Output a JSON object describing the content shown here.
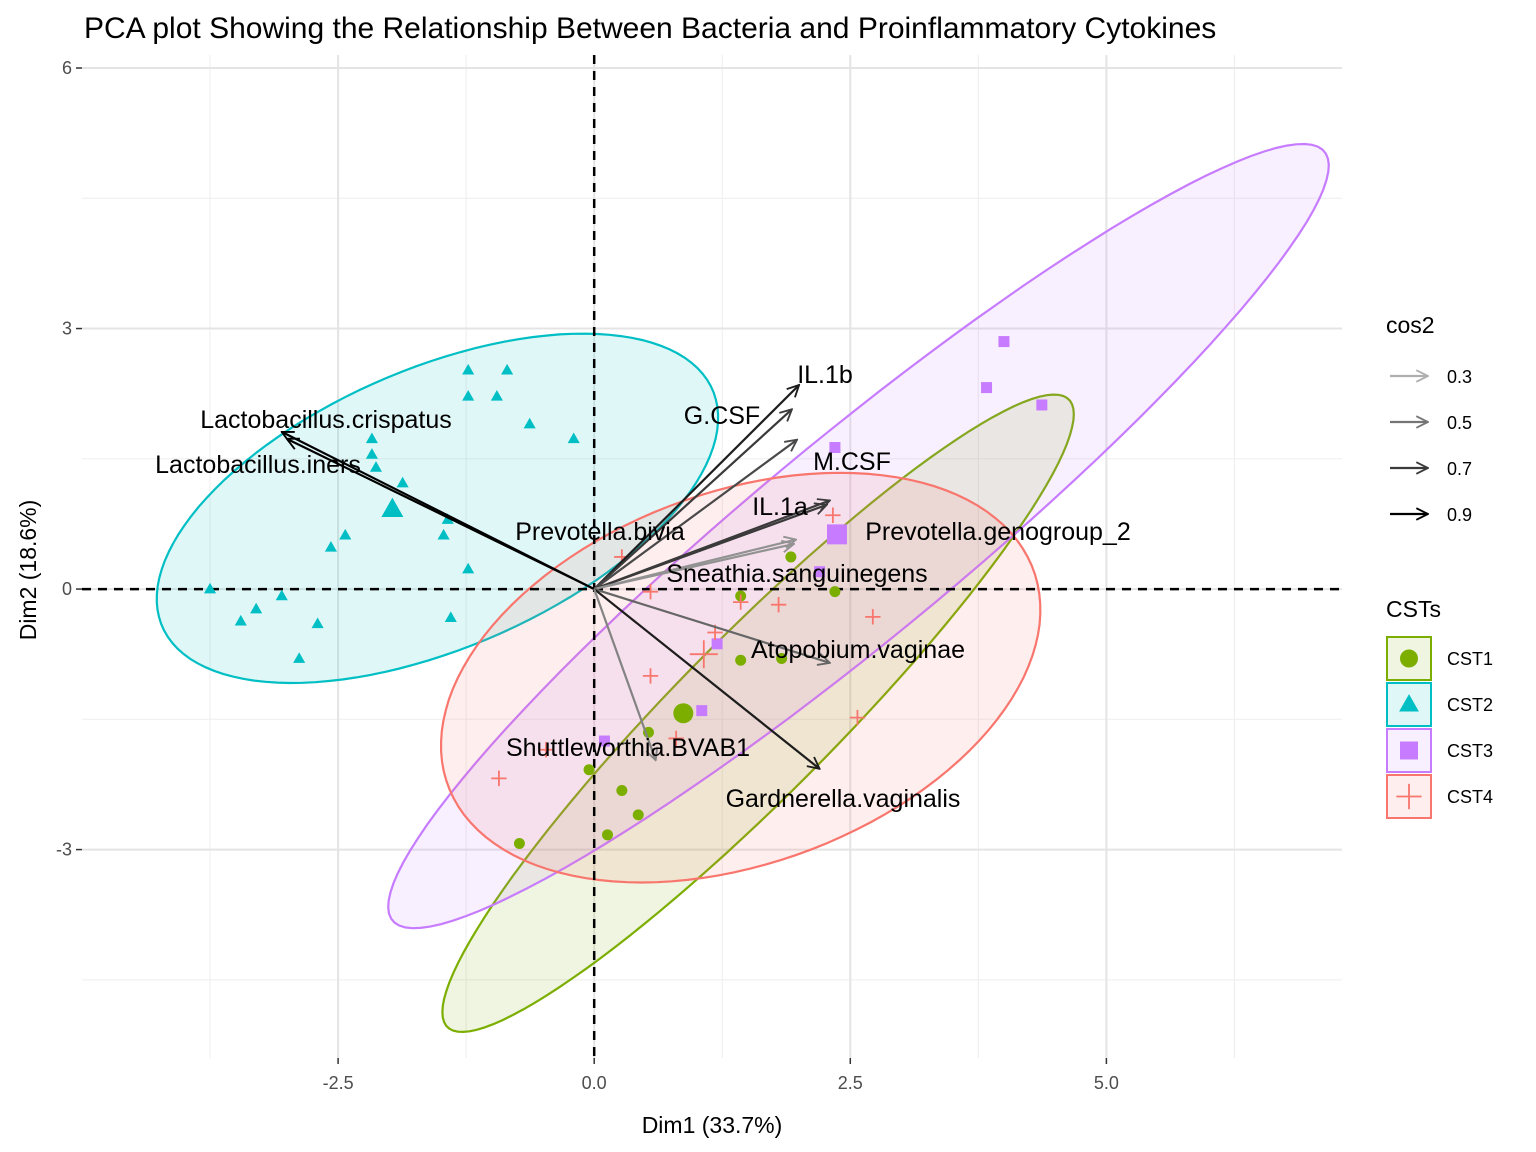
{
  "chart_data": {
    "type": "scatter",
    "title": "PCA plot Showing the Relationship Between Bacteria and Proinflammatory Cytokines",
    "xlabel": "Dim1 (33.7%)",
    "ylabel": "Dim2 (18.6%)",
    "xlim": [
      -5.0,
      7.3
    ],
    "ylim": [
      -5.4,
      6.15
    ],
    "x_ticks": [
      -2.5,
      0.0,
      2.5,
      5.0
    ],
    "x_tick_labels": [
      "-2.5",
      "0.0",
      "2.5",
      "5.0"
    ],
    "y_ticks": [
      -3,
      0,
      3,
      6
    ],
    "y_tick_labels": [
      "-3",
      "0",
      "3",
      "6"
    ],
    "grid": true,
    "legend_placement": "right",
    "variables": [
      {
        "label": "Lactobacillus.crispatus",
        "x": -3.05,
        "y": 1.81,
        "cos2": 0.9
      },
      {
        "label": "Lactobacillus.iners",
        "x": -3.0,
        "y": 1.73,
        "cos2": 0.9
      },
      {
        "label": "IL.1b",
        "x": 2.0,
        "y": 2.35,
        "cos2": 0.8
      },
      {
        "label": "G.CSF",
        "x": 1.93,
        "y": 2.07,
        "cos2": 0.7
      },
      {
        "label": "M.CSF",
        "x": 1.98,
        "y": 1.72,
        "cos2": 0.65
      },
      {
        "label": "IL.1a",
        "x": 2.3,
        "y": 1.02,
        "cos2": 0.7
      },
      {
        "label": "Prevotella.genogroup_2",
        "x": 2.27,
        "y": 0.97,
        "cos2": 0.7
      },
      {
        "label": "Prevotella.bivia",
        "x": 1.97,
        "y": 0.57,
        "cos2": 0.4
      },
      {
        "label": "Sneathia.sanguinegens",
        "x": 1.95,
        "y": 0.52,
        "cos2": 0.4
      },
      {
        "label": "Atopobium.vaginae",
        "x": 2.3,
        "y": -0.85,
        "cos2": 0.55
      },
      {
        "label": "Gardnerella.vaginalis",
        "x": 2.2,
        "y": -2.07,
        "cos2": 0.8
      },
      {
        "label": "Shuttleworthia.BVAB1",
        "x": 0.6,
        "y": -1.97,
        "cos2": 0.45
      }
    ],
    "groups": [
      {
        "name": "CST1",
        "color": "#7CAE00",
        "shape": "circle",
        "centroid": [
          0.87,
          -1.43
        ],
        "points": [
          [
            1.92,
            0.37
          ],
          [
            1.43,
            -0.08
          ],
          [
            2.35,
            -0.03
          ],
          [
            1.43,
            -0.82
          ],
          [
            1.83,
            -0.8
          ],
          [
            0.53,
            -1.65
          ],
          [
            -0.05,
            -2.08
          ],
          [
            0.27,
            -2.32
          ],
          [
            0.43,
            -2.6
          ],
          [
            0.13,
            -2.83
          ],
          [
            -0.73,
            -2.93
          ]
        ]
      },
      {
        "name": "CST2",
        "color": "#00BFC4",
        "shape": "triangle",
        "centroid": [
          -1.97,
          0.92
        ],
        "points": [
          [
            -1.23,
            2.52
          ],
          [
            -0.85,
            2.52
          ],
          [
            -0.95,
            2.22
          ],
          [
            -1.23,
            2.22
          ],
          [
            -0.63,
            1.9
          ],
          [
            -0.2,
            1.73
          ],
          [
            -2.17,
            1.73
          ],
          [
            -2.17,
            1.55
          ],
          [
            -2.13,
            1.4
          ],
          [
            -1.87,
            1.22
          ],
          [
            -1.43,
            0.8
          ],
          [
            -1.47,
            0.62
          ],
          [
            -2.43,
            0.62
          ],
          [
            -2.57,
            0.48
          ],
          [
            -1.23,
            0.23
          ],
          [
            -3.75,
            0.0
          ],
          [
            -3.05,
            -0.08
          ],
          [
            -3.3,
            -0.23
          ],
          [
            -3.45,
            -0.37
          ],
          [
            -2.7,
            -0.4
          ],
          [
            -1.4,
            -0.33
          ],
          [
            -2.88,
            -0.8
          ]
        ]
      },
      {
        "name": "CST3",
        "color": "#C77CFF",
        "shape": "square",
        "centroid": [
          2.37,
          0.63
        ],
        "points": [
          [
            4.0,
            2.85
          ],
          [
            3.83,
            2.32
          ],
          [
            4.37,
            2.12
          ],
          [
            2.35,
            1.63
          ],
          [
            2.2,
            0.2
          ],
          [
            1.2,
            -0.63
          ],
          [
            1.05,
            -1.4
          ],
          [
            0.1,
            -1.75
          ]
        ]
      },
      {
        "name": "CST4",
        "color": "#F8766D",
        "shape": "plus",
        "centroid": [
          1.07,
          -0.75
        ],
        "points": [
          [
            2.33,
            0.85
          ],
          [
            0.27,
            0.37
          ],
          [
            0.55,
            -0.03
          ],
          [
            1.43,
            -0.15
          ],
          [
            1.8,
            -0.18
          ],
          [
            2.72,
            -0.32
          ],
          [
            1.18,
            -0.5
          ],
          [
            0.55,
            -1.0
          ],
          [
            2.57,
            -1.48
          ],
          [
            0.8,
            -1.72
          ],
          [
            -0.47,
            -1.85
          ],
          [
            -0.93,
            -2.18
          ]
        ]
      }
    ],
    "ellipses": [
      {
        "group": "CST2",
        "center": [
          -1.53,
          0.93
        ],
        "a": 3.02,
        "b": 1.56,
        "angle_deg": 29.4
      },
      {
        "group": "CST1",
        "center": [
          1.6,
          -1.43
        ],
        "a": 4.72,
        "b": 0.83,
        "angle_deg": 50.3
      },
      {
        "group": "CST3",
        "center": [
          2.58,
          0.61
        ],
        "a": 6.35,
        "b": 1.07,
        "angle_deg": 44.5
      },
      {
        "group": "CST4",
        "center": [
          1.43,
          -1.02
        ],
        "a": 3.13,
        "b": 2.08,
        "angle_deg": 28.4
      }
    ],
    "legend": {
      "cos2": {
        "title": "cos2",
        "entries": [
          "0.3",
          "0.5",
          "0.7",
          "0.9"
        ]
      },
      "csts": {
        "title": "CSTs",
        "entries": [
          "CST1",
          "CST2",
          "CST3",
          "CST4"
        ]
      }
    }
  }
}
